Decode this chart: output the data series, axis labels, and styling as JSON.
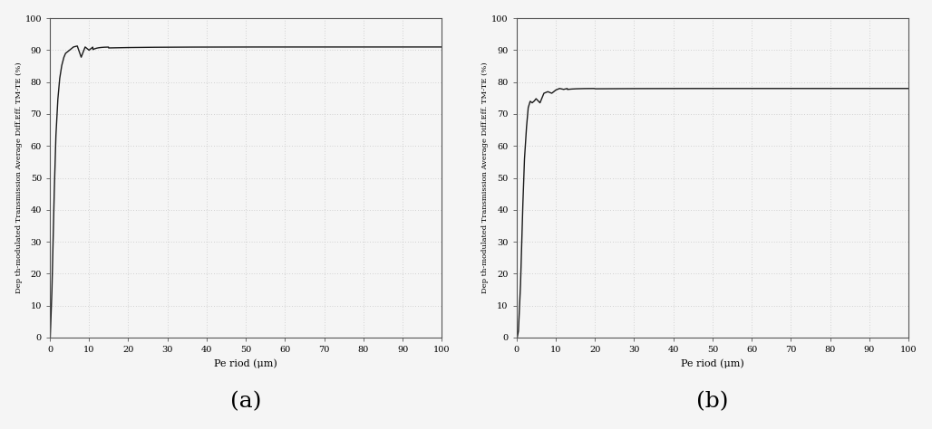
{
  "ylabel": "Dep th-modulated Transmission Average Diff.Eff. TM-TE (%)",
  "xlabel": "Pe riod (μm)",
  "xlim": [
    0,
    100
  ],
  "ylim": [
    0,
    100
  ],
  "xticks": [
    0,
    10,
    20,
    30,
    40,
    50,
    60,
    70,
    80,
    90,
    100
  ],
  "yticks": [
    0,
    10,
    20,
    30,
    40,
    50,
    60,
    70,
    80,
    90,
    100
  ],
  "label_a": "(a)",
  "label_b": "(b)",
  "line_color": "#1a1a1a",
  "grid_color": "#aaaaaa",
  "background_color": "#f5f5f5",
  "figsize": [
    10.28,
    4.74
  ],
  "dpi": 100
}
